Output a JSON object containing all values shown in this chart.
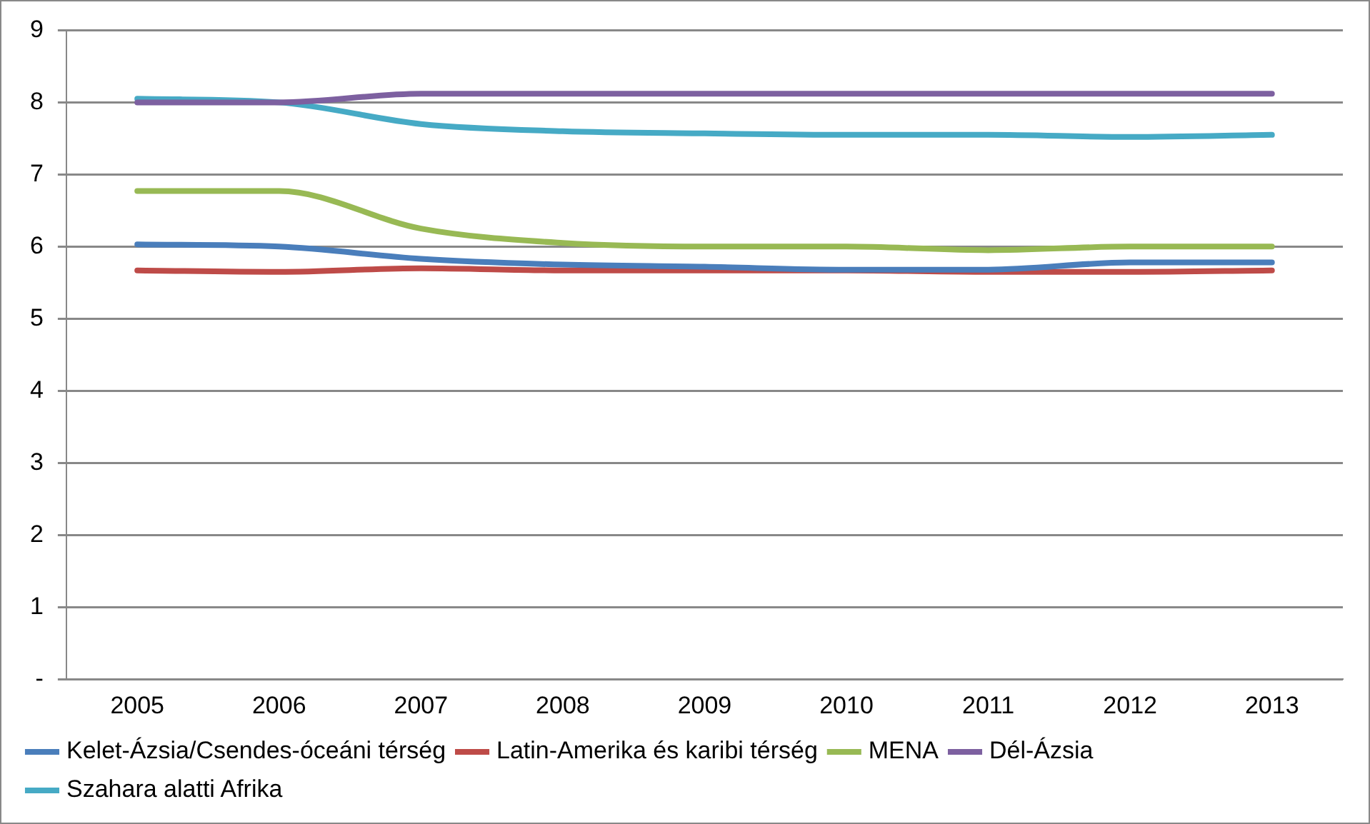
{
  "chart_data": {
    "type": "line",
    "categories": [
      "2005",
      "2006",
      "2007",
      "2008",
      "2009",
      "2010",
      "2011",
      "2012",
      "2013"
    ],
    "series": [
      {
        "name": "Kelet-Ázsia/Csendes-óceáni térség",
        "color": "#4a7ebb",
        "values": [
          6.03,
          6.0,
          5.83,
          5.75,
          5.72,
          5.68,
          5.68,
          5.78,
          5.78
        ]
      },
      {
        "name": "Latin-Amerika és karibi térség",
        "color": "#be4b48",
        "values": [
          5.67,
          5.65,
          5.7,
          5.67,
          5.67,
          5.67,
          5.65,
          5.65,
          5.67
        ]
      },
      {
        "name": "MENA",
        "color": "#98b954",
        "values": [
          6.77,
          6.77,
          6.25,
          6.05,
          6.0,
          6.0,
          5.95,
          6.0,
          6.0
        ]
      },
      {
        "name": "Dél-Ázsia",
        "color": "#7d60a0",
        "values": [
          8.0,
          8.0,
          8.12,
          8.12,
          8.12,
          8.12,
          8.12,
          8.12,
          8.12
        ]
      },
      {
        "name": "Szahara alatti Afrika",
        "color": "#46aac5",
        "values": [
          8.05,
          8.0,
          7.7,
          7.6,
          7.57,
          7.55,
          7.55,
          7.52,
          7.55
        ]
      }
    ],
    "ylim": [
      0,
      9
    ],
    "yticks": [
      {
        "value": 0,
        "label": "-"
      },
      1,
      2,
      3,
      4,
      5,
      6,
      7,
      8,
      9
    ],
    "grid": "y",
    "legend": "bottom",
    "marker": "none",
    "line_style": "solid"
  }
}
